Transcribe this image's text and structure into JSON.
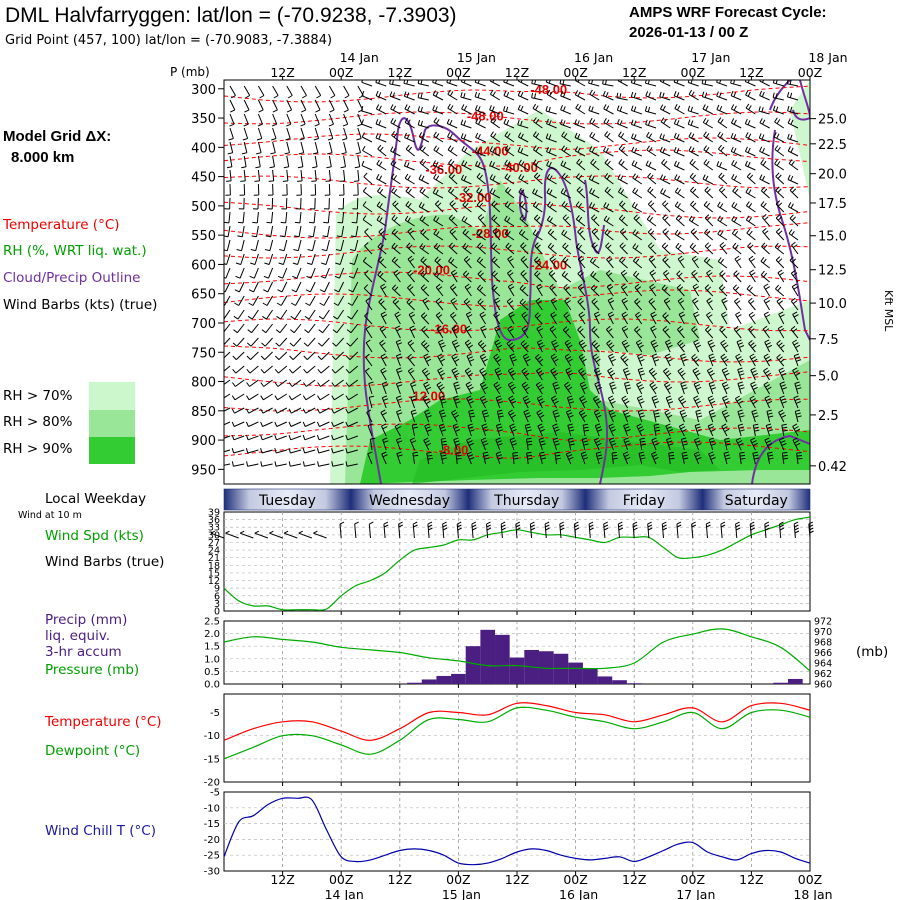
{
  "header": {
    "title": "DML Halvfarryggen:  lat/lon = (-70.9238, -7.3903)",
    "subtitle": "Grid Point (457, 100) lat/lon = (-70.9083, -7.3884)",
    "cycle_line1": "AMPS WRF Forecast Cycle:",
    "cycle_line2": "2026-01-13 / 00  Z"
  },
  "legend": {
    "grid_line1": "Model Grid ΔX:",
    "grid_line2": "8.000 km",
    "temperature": "Temperature (°C)",
    "rh": "RH (%, WRT liq. wat.)",
    "cloud": "Cloud/Precip Outline",
    "wind": "Wind Barbs (kts) (true)",
    "rh70": "RH > 70%",
    "rh80": "RH > 80%",
    "rh90": "RH > 90%",
    "local_weekday": "Local Weekday",
    "wind_10m": "Wind at 10 m",
    "wind_spd": "Wind Spd (kts)",
    "wind_barbs": "Wind Barbs (true)",
    "precip1": "Precip (mm)",
    "precip2": "liq. equiv.",
    "precip3": "3-hr accum",
    "pressure": "Pressure (mb)",
    "mb_unit": "(mb)",
    "temp2": "Temperature (°C)",
    "dewpoint": "Dewpoint (°C)",
    "windchill": "Wind Chill T (°C)"
  },
  "colors": {
    "temperature": "#ff0000",
    "rh_green": "#00aa00",
    "cloud": "#7030a0",
    "wind": "#000000",
    "rh70": "#ccf7cc",
    "rh80": "#99e699",
    "rh90": "#33cc33",
    "precip": "#4b1e82",
    "pressure": "#00aa00",
    "dewpoint": "#00aa00",
    "windchill": "#0000aa"
  },
  "chart_data": [
    {
      "type": "area",
      "name": "vertical_cross_section",
      "y_title": "P (mb)",
      "y2_title": "Kft MSL",
      "pressure_levels": [
        300,
        350,
        400,
        450,
        500,
        550,
        600,
        650,
        700,
        750,
        800,
        850,
        900,
        950
      ],
      "kft_ticks": [
        "25.0",
        "22.5",
        "20.0",
        "17.5",
        "15.0",
        "12.5",
        "10.0",
        "7.5",
        "5.0",
        "2.5",
        "0.42"
      ],
      "kft_pressures": [
        351,
        394,
        445,
        495,
        551,
        609,
        666,
        727,
        790,
        857,
        944
      ],
      "time_top": [
        {
          "h": 12,
          "hour": "12Z",
          "date": ""
        },
        {
          "h": 24,
          "hour": "00Z",
          "date": "14 Jan"
        },
        {
          "h": 36,
          "hour": "12Z",
          "date": ""
        },
        {
          "h": 48,
          "hour": "00Z",
          "date": "15 Jan"
        },
        {
          "h": 60,
          "hour": "12Z",
          "date": ""
        },
        {
          "h": 72,
          "hour": "00Z",
          "date": "16 Jan"
        },
        {
          "h": 84,
          "hour": "12Z",
          "date": ""
        },
        {
          "h": 96,
          "hour": "00Z",
          "date": "17 Jan"
        },
        {
          "h": 108,
          "hour": "12Z",
          "date": ""
        },
        {
          "h": 120,
          "hour": "00Z",
          "date": "18 Jan"
        }
      ],
      "temperature_labels": [
        {
          "text": "-48.00",
          "h": 66.5,
          "p": 300
        },
        {
          "text": "-48.00",
          "h": 53.5,
          "p": 346
        },
        {
          "text": "-44.00",
          "h": 54.5,
          "p": 405
        },
        {
          "text": "-40.00",
          "h": 60.5,
          "p": 434
        },
        {
          "text": "-36.00",
          "h": 45,
          "p": 437
        },
        {
          "text": "-32.00",
          "h": 51,
          "p": 485
        },
        {
          "text": "-28.00",
          "h": 54.5,
          "p": 546
        },
        {
          "text": "-24.00",
          "h": 66.5,
          "p": 600
        },
        {
          "text": "-20.00",
          "h": 42.5,
          "p": 609
        },
        {
          "text": "-16.00",
          "h": 46,
          "p": 709
        },
        {
          "text": "-12.00",
          "h": 41.5,
          "p": 824
        },
        {
          "text": "-8.00",
          "h": 47,
          "p": 916
        }
      ],
      "rh_thresholds": [
        70,
        80,
        90
      ]
    },
    {
      "type": "line",
      "name": "wind_10m",
      "y_ticks": [
        0,
        3,
        6,
        9,
        12,
        15,
        18,
        21,
        24,
        27,
        30,
        33,
        36,
        39
      ],
      "ylim": [
        0,
        39
      ],
      "hours": [
        0,
        3,
        6,
        9,
        12,
        15,
        18,
        21,
        24,
        27,
        30,
        33,
        36,
        39,
        42,
        45,
        48,
        51,
        54,
        57,
        60,
        63,
        66,
        69,
        72,
        75,
        78,
        81,
        84,
        87,
        90,
        93,
        96,
        99,
        102,
        105,
        108,
        111,
        114,
        117,
        120
      ],
      "speed_kts": [
        9,
        4,
        2,
        2,
        0.5,
        0.5,
        0.5,
        0.8,
        6,
        10,
        12,
        15,
        20,
        24,
        25,
        26,
        28,
        28,
        30,
        31,
        32,
        31,
        30,
        30,
        29,
        28,
        27,
        29,
        29,
        29,
        25,
        21,
        21,
        22,
        24,
        27,
        30,
        32,
        34,
        36,
        37
      ]
    },
    {
      "type": "bar",
      "name": "precip_pressure",
      "y_ticks": [
        0.0,
        0.5,
        1.0,
        1.5,
        2.0,
        2.5
      ],
      "ylim": [
        0,
        2.5
      ],
      "y2_ticks": [
        960,
        962,
        964,
        966,
        968,
        970,
        972
      ],
      "y2lim": [
        960,
        972
      ],
      "precip_mm": [
        {
          "h": 39,
          "v": 0.05
        },
        {
          "h": 42,
          "v": 0.18
        },
        {
          "h": 45,
          "v": 0.32
        },
        {
          "h": 48,
          "v": 0.4
        },
        {
          "h": 51,
          "v": 1.5
        },
        {
          "h": 54,
          "v": 2.15
        },
        {
          "h": 57,
          "v": 1.95
        },
        {
          "h": 60,
          "v": 1.05
        },
        {
          "h": 63,
          "v": 1.35
        },
        {
          "h": 66,
          "v": 1.3
        },
        {
          "h": 69,
          "v": 1.2
        },
        {
          "h": 72,
          "v": 0.85
        },
        {
          "h": 75,
          "v": 0.6
        },
        {
          "h": 78,
          "v": 0.3
        },
        {
          "h": 81,
          "v": 0.15
        },
        {
          "h": 84,
          "v": 0.03
        },
        {
          "h": 114,
          "v": 0.05
        },
        {
          "h": 117,
          "v": 0.2
        }
      ],
      "pressure_hours": [
        0,
        6,
        12,
        18,
        24,
        30,
        36,
        42,
        48,
        54,
        60,
        66,
        72,
        78,
        84,
        90,
        96,
        102,
        108,
        114,
        120
      ],
      "pressure_mb": [
        968,
        969,
        968.5,
        968,
        967,
        966.5,
        966,
        965,
        964.4,
        963.5,
        963.5,
        963,
        963,
        963,
        964,
        968,
        969.5,
        970.5,
        969,
        967,
        962.5
      ]
    },
    {
      "type": "line",
      "name": "temperature_dewpoint",
      "y_ticks": [
        -20,
        -15,
        -10,
        -5
      ],
      "ylim": [
        -20,
        -1
      ],
      "hours": [
        0,
        6,
        12,
        18,
        24,
        30,
        36,
        42,
        48,
        54,
        60,
        66,
        72,
        78,
        84,
        90,
        96,
        102,
        108,
        114,
        120
      ],
      "series": [
        {
          "name": "Temperature (°C)",
          "values": [
            -11,
            -8.5,
            -7,
            -7,
            -9,
            -11,
            -8.5,
            -5,
            -5,
            -5.5,
            -3,
            -3.5,
            -5,
            -5.5,
            -7,
            -5.5,
            -4,
            -7,
            -3.5,
            -3,
            -4.5
          ]
        },
        {
          "name": "Dewpoint (°C)",
          "values": [
            -15,
            -12.5,
            -10,
            -10,
            -12,
            -14,
            -11,
            -6.5,
            -6.5,
            -7,
            -4,
            -4.5,
            -6,
            -7,
            -8.5,
            -7,
            -5,
            -8.5,
            -5,
            -4.5,
            -6
          ]
        }
      ]
    },
    {
      "type": "line",
      "name": "wind_chill",
      "y_ticks": [
        -30,
        -25,
        -20,
        -15,
        -10,
        -5
      ],
      "ylim": [
        -30,
        -5
      ],
      "hours": [
        0,
        3,
        6,
        9,
        12,
        15,
        18,
        21,
        24,
        27,
        30,
        33,
        36,
        39,
        42,
        45,
        48,
        51,
        54,
        57,
        60,
        63,
        66,
        69,
        72,
        75,
        78,
        81,
        84,
        87,
        90,
        93,
        96,
        99,
        102,
        105,
        108,
        111,
        114,
        117,
        120
      ],
      "values": [
        -25.5,
        -14.5,
        -12.5,
        -9,
        -7,
        -7,
        -7.5,
        -17,
        -25.5,
        -27,
        -26.5,
        -25,
        -23.5,
        -23,
        -23.5,
        -25,
        -27.5,
        -28,
        -27.5,
        -26,
        -24,
        -23,
        -23.5,
        -25,
        -26,
        -26.5,
        -26,
        -25.5,
        -27,
        -25.5,
        -23.5,
        -21.5,
        -21,
        -24,
        -25.5,
        -26.5,
        -24.5,
        -23.5,
        -24,
        -26,
        -27.5
      ]
    }
  ],
  "time_axis": {
    "bottom": [
      {
        "h": 12,
        "hour": "12Z",
        "date": ""
      },
      {
        "h": 24,
        "hour": "00Z",
        "date": "14 Jan"
      },
      {
        "h": 36,
        "hour": "12Z",
        "date": ""
      },
      {
        "h": 48,
        "hour": "00Z",
        "date": "15 Jan"
      },
      {
        "h": 60,
        "hour": "12Z",
        "date": ""
      },
      {
        "h": 72,
        "hour": "00Z",
        "date": "16 Jan"
      },
      {
        "h": 84,
        "hour": "12Z",
        "date": ""
      },
      {
        "h": 96,
        "hour": "00Z",
        "date": "17 Jan"
      },
      {
        "h": 108,
        "hour": "12Z",
        "date": ""
      },
      {
        "h": 120,
        "hour": "00Z",
        "date": "18 Jan"
      }
    ],
    "weekdays": [
      {
        "name": "Tuesday",
        "h0": 0,
        "h1": 26
      },
      {
        "name": "Wednesday",
        "h0": 26,
        "h1": 50
      },
      {
        "name": "Thursday",
        "h0": 50,
        "h1": 74
      },
      {
        "name": "Friday",
        "h0": 74,
        "h1": 98
      },
      {
        "name": "Saturday",
        "h0": 98,
        "h1": 120
      }
    ]
  }
}
